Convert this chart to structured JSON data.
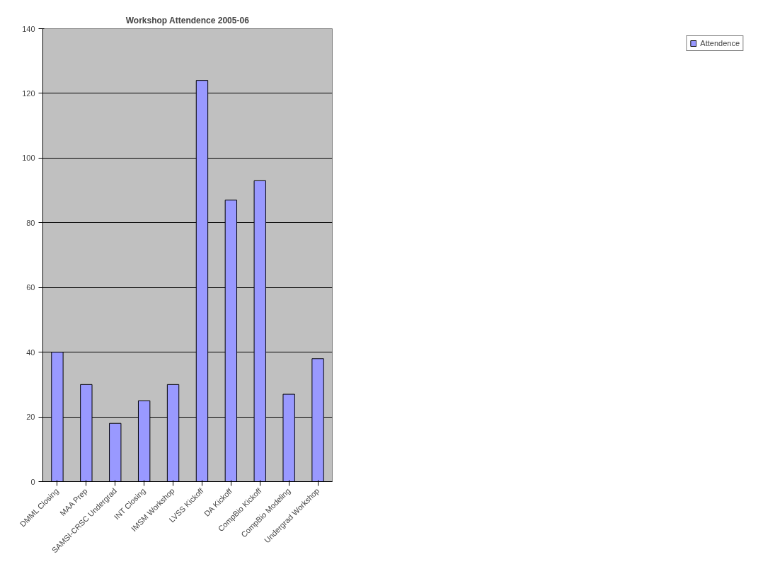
{
  "chart_data": {
    "type": "bar",
    "title": "Workshop Attendence 2005-06",
    "categories": [
      "DMML Closing",
      "MAA Prep",
      "SAMSI-CRSC Undergrad",
      "INT Closing",
      "IMSM Workshop",
      "LVSS Kickoff",
      "DA Kickoff",
      "CompBio Kickoff",
      "CompBio Modeling",
      "Undergrad Workshop"
    ],
    "series": [
      {
        "name": "Attendence",
        "color": "#9999ff",
        "values": [
          40,
          30,
          18,
          25,
          30,
          124,
          87,
          93,
          27,
          38
        ]
      }
    ],
    "ylim": [
      0,
      140
    ],
    "yticks": [
      0,
      20,
      40,
      60,
      80,
      100,
      120,
      140
    ],
    "grid": "y",
    "legend": "right"
  }
}
